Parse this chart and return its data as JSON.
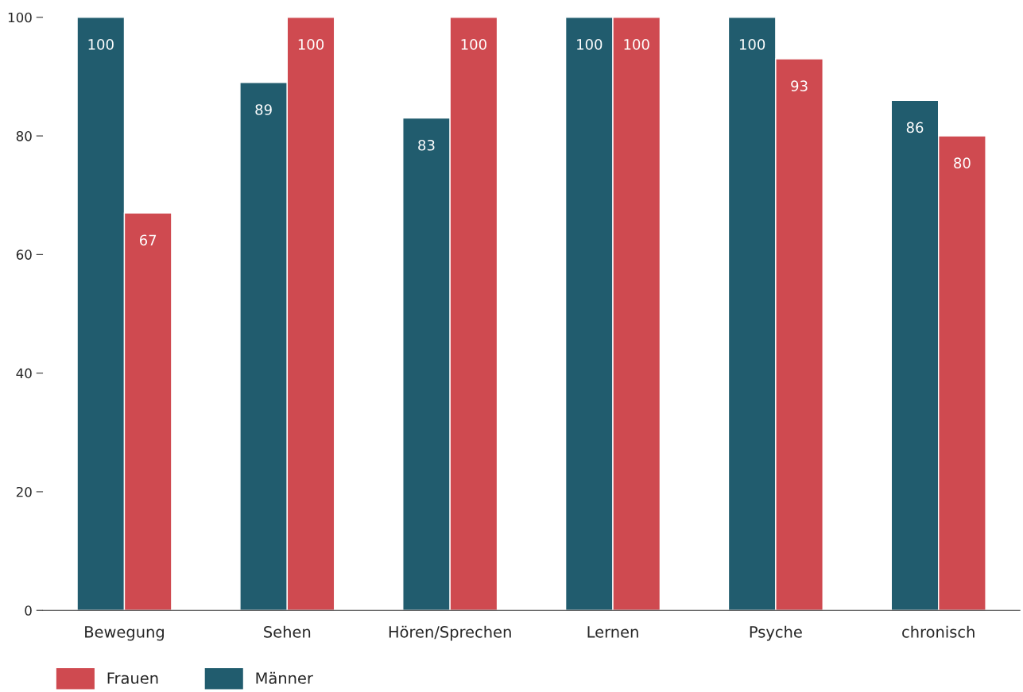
{
  "chart_data": {
    "type": "bar",
    "categories": [
      "Bewegung",
      "Sehen",
      "Hören/Sprechen",
      "Lernen",
      "Psyche",
      "chronisch"
    ],
    "series": [
      {
        "name": "Männer",
        "color": "#215c6e",
        "values": [
          100,
          89,
          83,
          100,
          100,
          86
        ]
      },
      {
        "name": "Frauen",
        "color": "#cf4a50",
        "values": [
          67,
          100,
          100,
          100,
          93,
          80
        ]
      }
    ],
    "ylim": [
      0,
      100
    ],
    "yticks": [
      0,
      20,
      40,
      60,
      80,
      100
    ],
    "data_labels": true,
    "grid": false,
    "legend": "bottom left"
  }
}
